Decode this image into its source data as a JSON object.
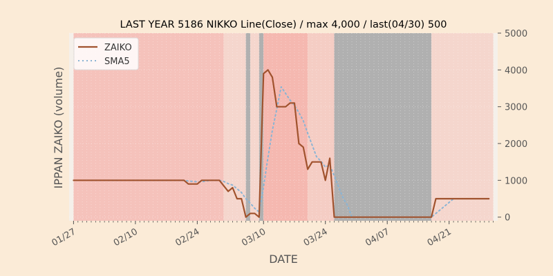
{
  "chart_data": {
    "type": "line",
    "title": "LAST YEAR 5186 NIKKO Line(Close) / max 4,000 / last(04/30) 500",
    "xlabel": "DATE",
    "ylabel": "IPPAN ZAIKO (volume)",
    "ylim": [
      -100,
      5000
    ],
    "y_axis_side": "right",
    "yticks": [
      0,
      1000,
      2000,
      3000,
      4000,
      5000
    ],
    "yticklabels": [
      "0",
      "1000",
      "2000",
      "3000",
      "4000",
      "5000"
    ],
    "xticklabels": [
      {
        "label": "01/27",
        "date": "2020-01-27"
      },
      {
        "label": "02/10",
        "date": "2020-02-10"
      },
      {
        "label": "02/24",
        "date": "2020-02-24"
      },
      {
        "label": "03/10",
        "date": "2020-03-10"
      },
      {
        "label": "03/24",
        "date": "2020-03-24"
      },
      {
        "label": "04/07",
        "date": "2020-04-07"
      },
      {
        "label": "04/21",
        "date": "2020-04-21"
      }
    ],
    "xlim": [
      "2020-01-26",
      "2020-05-02"
    ],
    "legend": {
      "position": "top-left"
    },
    "colors": {
      "zaiko": "#a0522d",
      "sma5": "#8ab4d4",
      "plot_bg": "#f5f0ea",
      "figure_bg": "#fbebd7",
      "grey": "#b0b0b0"
    },
    "background_bands": [
      {
        "start": "2020-01-27",
        "end": "2020-03-01",
        "color": "#f5c2bb"
      },
      {
        "start": "2020-03-01",
        "end": "2020-03-06",
        "color": "#f5d6cd"
      },
      {
        "start": "2020-03-06",
        "end": "2020-03-07",
        "color": "#b0b0b0"
      },
      {
        "start": "2020-03-07",
        "end": "2020-03-09",
        "color": "#f5d6cd"
      },
      {
        "start": "2020-03-09",
        "end": "2020-03-10",
        "color": "#b0b0b0"
      },
      {
        "start": "2020-03-10",
        "end": "2020-03-20",
        "color": "#f5b8b0"
      },
      {
        "start": "2020-03-20",
        "end": "2020-03-26",
        "color": "#f5cdc4"
      },
      {
        "start": "2020-03-26",
        "end": "2020-04-17",
        "color": "#b0b0b0"
      },
      {
        "start": "2020-04-17",
        "end": "2020-05-01",
        "color": "#f5d6cd"
      }
    ],
    "series": [
      {
        "name": "ZAIKO",
        "style": "solid",
        "points": [
          [
            "2020-01-27",
            1000
          ],
          [
            "2020-01-28",
            1000
          ],
          [
            "2020-01-29",
            1000
          ],
          [
            "2020-01-30",
            1000
          ],
          [
            "2020-01-31",
            1000
          ],
          [
            "2020-02-01",
            1000
          ],
          [
            "2020-02-02",
            1000
          ],
          [
            "2020-02-03",
            1000
          ],
          [
            "2020-02-04",
            1000
          ],
          [
            "2020-02-05",
            1000
          ],
          [
            "2020-02-06",
            1000
          ],
          [
            "2020-02-07",
            1000
          ],
          [
            "2020-02-08",
            1000
          ],
          [
            "2020-02-09",
            1000
          ],
          [
            "2020-02-10",
            1000
          ],
          [
            "2020-02-11",
            1000
          ],
          [
            "2020-02-12",
            1000
          ],
          [
            "2020-02-13",
            1000
          ],
          [
            "2020-02-14",
            1000
          ],
          [
            "2020-02-15",
            1000
          ],
          [
            "2020-02-16",
            1000
          ],
          [
            "2020-02-17",
            1000
          ],
          [
            "2020-02-18",
            1000
          ],
          [
            "2020-02-19",
            1000
          ],
          [
            "2020-02-20",
            1000
          ],
          [
            "2020-02-21",
            1000
          ],
          [
            "2020-02-22",
            900
          ],
          [
            "2020-02-23",
            900
          ],
          [
            "2020-02-24",
            900
          ],
          [
            "2020-02-25",
            1000
          ],
          [
            "2020-02-26",
            1000
          ],
          [
            "2020-02-27",
            1000
          ],
          [
            "2020-02-28",
            1000
          ],
          [
            "2020-02-29",
            1000
          ],
          [
            "2020-03-01",
            850
          ],
          [
            "2020-03-02",
            700
          ],
          [
            "2020-03-03",
            800
          ],
          [
            "2020-03-04",
            500
          ],
          [
            "2020-03-05",
            500
          ],
          [
            "2020-03-06",
            0
          ],
          [
            "2020-03-07",
            100
          ],
          [
            "2020-03-08",
            100
          ],
          [
            "2020-03-09",
            0
          ],
          [
            "2020-03-10",
            3900
          ],
          [
            "2020-03-11",
            4000
          ],
          [
            "2020-03-12",
            3800
          ],
          [
            "2020-03-13",
            3000
          ],
          [
            "2020-03-14",
            3000
          ],
          [
            "2020-03-15",
            3000
          ],
          [
            "2020-03-16",
            3100
          ],
          [
            "2020-03-17",
            3100
          ],
          [
            "2020-03-18",
            2000
          ],
          [
            "2020-03-19",
            1900
          ],
          [
            "2020-03-20",
            1300
          ],
          [
            "2020-03-21",
            1500
          ],
          [
            "2020-03-22",
            1500
          ],
          [
            "2020-03-23",
            1500
          ],
          [
            "2020-03-24",
            1000
          ],
          [
            "2020-03-25",
            1600
          ],
          [
            "2020-03-26",
            0
          ],
          [
            "2020-03-27",
            0
          ],
          [
            "2020-03-28",
            0
          ],
          [
            "2020-03-29",
            0
          ],
          [
            "2020-03-30",
            0
          ],
          [
            "2020-03-31",
            0
          ],
          [
            "2020-04-01",
            0
          ],
          [
            "2020-04-02",
            0
          ],
          [
            "2020-04-03",
            0
          ],
          [
            "2020-04-04",
            0
          ],
          [
            "2020-04-05",
            0
          ],
          [
            "2020-04-06",
            0
          ],
          [
            "2020-04-07",
            0
          ],
          [
            "2020-04-08",
            0
          ],
          [
            "2020-04-09",
            0
          ],
          [
            "2020-04-10",
            0
          ],
          [
            "2020-04-11",
            0
          ],
          [
            "2020-04-12",
            0
          ],
          [
            "2020-04-13",
            0
          ],
          [
            "2020-04-14",
            0
          ],
          [
            "2020-04-15",
            0
          ],
          [
            "2020-04-16",
            0
          ],
          [
            "2020-04-17",
            0
          ],
          [
            "2020-04-18",
            500
          ],
          [
            "2020-04-19",
            500
          ],
          [
            "2020-04-20",
            500
          ],
          [
            "2020-04-21",
            500
          ],
          [
            "2020-04-22",
            500
          ],
          [
            "2020-04-23",
            500
          ],
          [
            "2020-04-24",
            500
          ],
          [
            "2020-04-25",
            500
          ],
          [
            "2020-04-26",
            500
          ],
          [
            "2020-04-27",
            500
          ],
          [
            "2020-04-28",
            500
          ],
          [
            "2020-04-29",
            500
          ],
          [
            "2020-04-30",
            500
          ]
        ]
      },
      {
        "name": "SMA5",
        "style": "dotted",
        "points": [
          [
            "2020-01-31",
            1000
          ],
          [
            "2020-02-21",
            1000
          ],
          [
            "2020-02-22",
            980
          ],
          [
            "2020-02-24",
            960
          ],
          [
            "2020-02-25",
            960
          ],
          [
            "2020-02-26",
            980
          ],
          [
            "2020-02-27",
            1000
          ],
          [
            "2020-02-29",
            1000
          ],
          [
            "2020-03-01",
            970
          ],
          [
            "2020-03-02",
            910
          ],
          [
            "2020-03-03",
            870
          ],
          [
            "2020-03-04",
            770
          ],
          [
            "2020-03-05",
            670
          ],
          [
            "2020-03-06",
            500
          ],
          [
            "2020-03-07",
            380
          ],
          [
            "2020-03-08",
            240
          ],
          [
            "2020-03-09",
            140
          ],
          [
            "2020-03-10",
            820
          ],
          [
            "2020-03-11",
            1620
          ],
          [
            "2020-03-12",
            2360
          ],
          [
            "2020-03-13",
            2940
          ],
          [
            "2020-03-14",
            3540
          ],
          [
            "2020-03-15",
            3360
          ],
          [
            "2020-03-16",
            3180
          ],
          [
            "2020-03-17",
            3040
          ],
          [
            "2020-03-18",
            2840
          ],
          [
            "2020-03-19",
            2620
          ],
          [
            "2020-03-20",
            2280
          ],
          [
            "2020-03-21",
            1960
          ],
          [
            "2020-03-22",
            1640
          ],
          [
            "2020-03-23",
            1520
          ],
          [
            "2020-03-24",
            1360
          ],
          [
            "2020-03-25",
            1420
          ],
          [
            "2020-03-26",
            1120
          ],
          [
            "2020-03-27",
            820
          ],
          [
            "2020-03-28",
            520
          ],
          [
            "2020-03-29",
            320
          ],
          [
            "2020-03-30",
            0
          ],
          [
            "2020-04-17",
            0
          ],
          [
            "2020-04-18",
            100
          ],
          [
            "2020-04-19",
            200
          ],
          [
            "2020-04-20",
            300
          ],
          [
            "2020-04-21",
            400
          ],
          [
            "2020-04-22",
            500
          ],
          [
            "2020-04-30",
            500
          ]
        ]
      }
    ]
  }
}
